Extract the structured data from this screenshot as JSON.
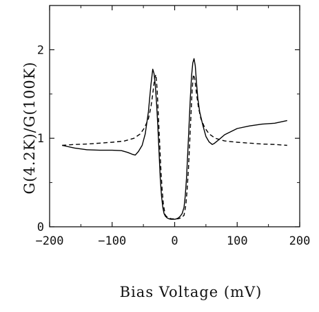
{
  "chart_data": {
    "type": "line",
    "title": "",
    "xlabel": "Bias Voltage (mV)",
    "ylabel": "G(4.2K)/G(100K)",
    "xlim": [
      -200,
      200
    ],
    "ylim": [
      0,
      2.5
    ],
    "x_ticks": [
      -200,
      -100,
      0,
      100,
      200
    ],
    "x_tick_labels": [
      "−200",
      "−100",
      "0",
      "100",
      "200"
    ],
    "y_ticks": [
      0,
      1,
      2
    ],
    "y_tick_labels": [
      "0",
      "1",
      "2"
    ],
    "grid": false,
    "legend": "none",
    "series": [
      {
        "style": "solid",
        "color": "#000000",
        "x": [
          -180,
          -160,
          -140,
          -120,
          -100,
          -85,
          -75,
          -68,
          -63,
          -58,
          -52,
          -47,
          -42,
          -38,
          -35,
          -33,
          -31,
          -29,
          -27,
          -25,
          -23,
          -21,
          -19,
          -17,
          -15,
          -12,
          -9,
          -6,
          -3,
          0,
          3,
          6,
          9,
          12,
          15,
          17,
          19,
          21,
          23,
          25,
          27,
          29,
          31,
          33,
          35,
          37,
          40,
          45,
          50,
          55,
          60,
          63,
          70,
          80,
          100,
          120,
          140,
          160,
          180
        ],
        "y": [
          0.92,
          0.89,
          0.87,
          0.865,
          0.865,
          0.86,
          0.84,
          0.82,
          0.81,
          0.85,
          0.92,
          1.05,
          1.3,
          1.6,
          1.78,
          1.73,
          1.6,
          1.4,
          1.15,
          0.85,
          0.55,
          0.35,
          0.22,
          0.15,
          0.12,
          0.1,
          0.09,
          0.085,
          0.085,
          0.085,
          0.09,
          0.1,
          0.12,
          0.15,
          0.22,
          0.35,
          0.55,
          0.85,
          1.15,
          1.45,
          1.7,
          1.85,
          1.9,
          1.82,
          1.62,
          1.45,
          1.3,
          1.15,
          1.02,
          0.96,
          0.93,
          0.94,
          0.98,
          1.04,
          1.11,
          1.14,
          1.16,
          1.17,
          1.2
        ]
      },
      {
        "style": "dashed",
        "color": "#000000",
        "x": [
          -180,
          -160,
          -140,
          -120,
          -100,
          -80,
          -65,
          -55,
          -48,
          -42,
          -38,
          -35,
          -32,
          -30,
          -28,
          -26,
          -24,
          -22,
          -20,
          -18,
          -15,
          -10,
          -5,
          0,
          5,
          10,
          15,
          18,
          20,
          22,
          24,
          26,
          28,
          30,
          32,
          35,
          38,
          42,
          48,
          55,
          65,
          80,
          100,
          120,
          140,
          160,
          180
        ],
        "y": [
          0.92,
          0.93,
          0.935,
          0.945,
          0.955,
          0.97,
          1.0,
          1.05,
          1.12,
          1.22,
          1.35,
          1.5,
          1.68,
          1.72,
          1.55,
          1.25,
          0.95,
          0.65,
          0.42,
          0.25,
          0.13,
          0.1,
          0.09,
          0.09,
          0.09,
          0.1,
          0.13,
          0.25,
          0.42,
          0.65,
          0.95,
          1.25,
          1.55,
          1.72,
          1.68,
          1.5,
          1.35,
          1.22,
          1.12,
          1.05,
          1.0,
          0.97,
          0.955,
          0.945,
          0.935,
          0.93,
          0.92
        ]
      }
    ]
  }
}
